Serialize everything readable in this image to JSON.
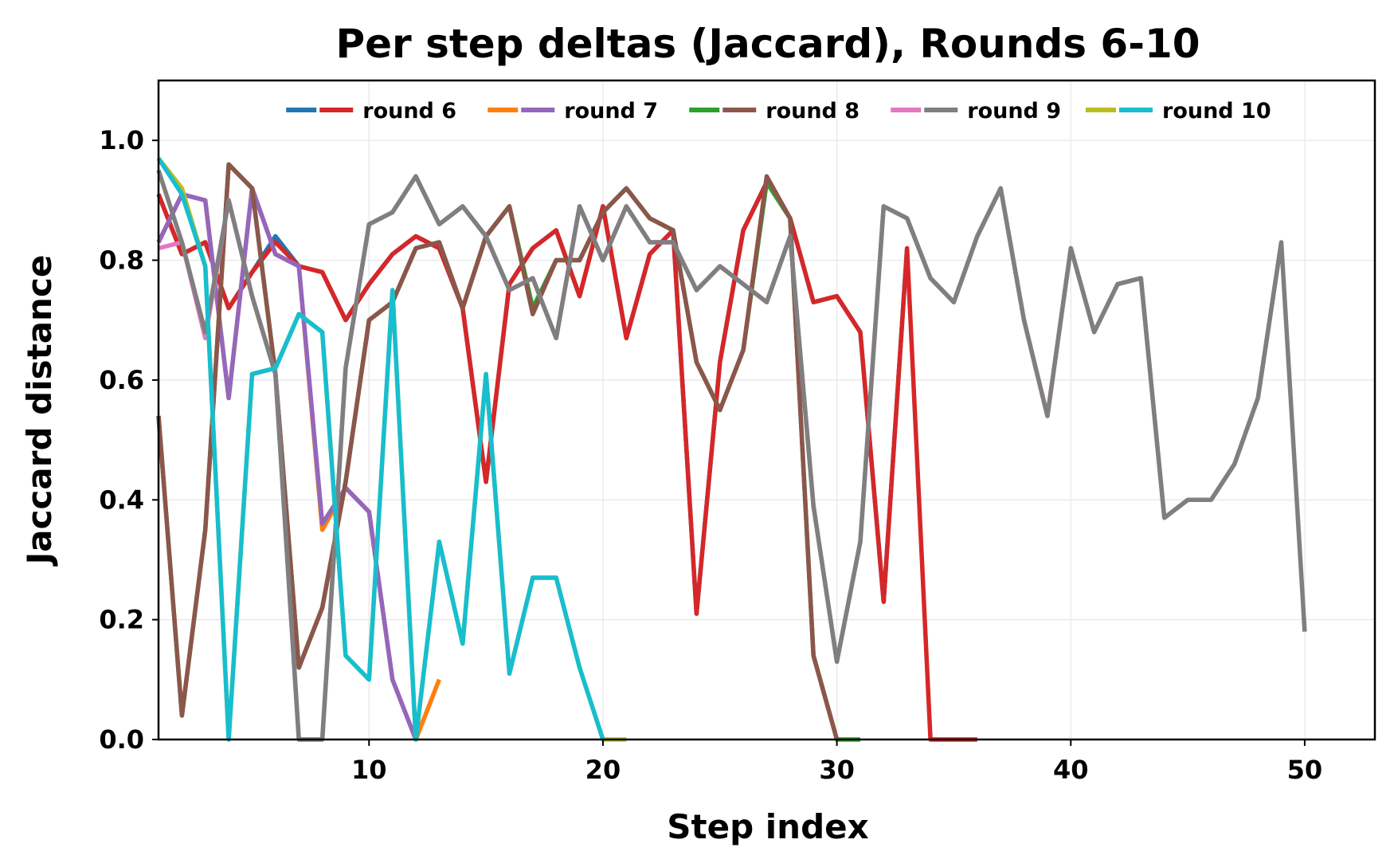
{
  "chart_data": {
    "type": "line",
    "title": "Per step deltas (Jaccard), Rounds 6-10",
    "xlabel": "Step index",
    "ylabel": "Jaccard distance",
    "xlim": [
      1,
      53
    ],
    "ylim": [
      0,
      1.1
    ],
    "xticks": [
      10,
      20,
      30,
      40,
      50
    ],
    "yticks": [
      0.0,
      0.2,
      0.4,
      0.6,
      0.8,
      1.0
    ],
    "ytick_labels": [
      "0.0",
      "0.2",
      "0.4",
      "0.6",
      "0.8",
      "1.0"
    ],
    "grid": true,
    "legend_position": "top-center",
    "legend": [
      {
        "label": "round 6",
        "colors": [
          "#1f77b4",
          "#d62728"
        ]
      },
      {
        "label": "round 7",
        "colors": [
          "#ff7f0e",
          "#9467bd"
        ]
      },
      {
        "label": "round 8",
        "colors": [
          "#2ca02c",
          "#8c564b"
        ]
      },
      {
        "label": "round 9",
        "colors": [
          "#e377c2",
          "#7f7f7f"
        ]
      },
      {
        "label": "round 10",
        "colors": [
          "#bcbd22",
          "#17becf"
        ]
      }
    ],
    "series": [
      {
        "name": "round 6",
        "color": "#1f77b4",
        "x": [
          1,
          2,
          3,
          4,
          5,
          6,
          7,
          8,
          9,
          10,
          11,
          12,
          13,
          14,
          15,
          16,
          17,
          18,
          19,
          20,
          21,
          22,
          23,
          24,
          25,
          26,
          27,
          28,
          29,
          30,
          31,
          32,
          33
        ],
        "y": [
          0.91,
          0.81,
          0.83,
          0.72,
          0.78,
          0.84,
          0.79,
          0.78,
          0.7,
          0.76,
          0.81,
          0.84,
          0.82,
          0.72,
          0.43,
          0.76,
          0.82,
          0.85,
          0.74,
          0.89,
          0.67,
          0.81,
          0.85,
          0.21,
          0.63,
          0.85,
          0.93,
          0.87,
          0.73,
          0.74,
          0.68,
          0.23,
          0.82
        ]
      },
      {
        "name": "round 6",
        "color": "#d62728",
        "x": [
          1,
          2,
          3,
          4,
          5,
          6,
          7,
          8,
          9,
          10,
          11,
          12,
          13,
          14,
          15,
          16,
          17,
          18,
          19,
          20,
          21,
          22,
          23,
          24,
          25,
          26,
          27,
          28,
          29,
          30,
          31,
          32,
          33,
          34,
          35,
          36
        ],
        "y": [
          0.91,
          0.81,
          0.83,
          0.72,
          0.78,
          0.83,
          0.79,
          0.78,
          0.7,
          0.76,
          0.81,
          0.84,
          0.82,
          0.72,
          0.43,
          0.76,
          0.82,
          0.85,
          0.74,
          0.89,
          0.67,
          0.81,
          0.85,
          0.21,
          0.63,
          0.85,
          0.93,
          0.87,
          0.73,
          0.74,
          0.68,
          0.23,
          0.82,
          0.0,
          0.0,
          0.0
        ]
      },
      {
        "name": "round 7",
        "color": "#ff7f0e",
        "x": [
          1,
          2,
          3,
          4,
          5,
          6,
          7,
          8,
          9,
          10,
          11,
          12,
          13
        ],
        "y": [
          0.83,
          0.91,
          0.9,
          0.57,
          0.92,
          0.81,
          0.79,
          0.35,
          0.42,
          0.38,
          0.1,
          0.0,
          0.1
        ]
      },
      {
        "name": "round 7",
        "color": "#9467bd",
        "x": [
          1,
          2,
          3,
          4,
          5,
          6,
          7,
          8,
          9,
          10,
          11,
          12
        ],
        "y": [
          0.83,
          0.91,
          0.9,
          0.57,
          0.92,
          0.81,
          0.79,
          0.36,
          0.42,
          0.38,
          0.1,
          0.0
        ]
      },
      {
        "name": "round 8",
        "color": "#2ca02c",
        "x": [
          1,
          2,
          3,
          4,
          5,
          6,
          7,
          8,
          9,
          10,
          11,
          12,
          13,
          14,
          15,
          16,
          17,
          18,
          19,
          20,
          21,
          22,
          23,
          24,
          25,
          26,
          27,
          28,
          29,
          30,
          31
        ],
        "y": [
          0.54,
          0.04,
          0.35,
          0.96,
          0.92,
          0.61,
          0.12,
          0.22,
          0.43,
          0.7,
          0.73,
          0.82,
          0.83,
          0.72,
          0.84,
          0.89,
          0.72,
          0.8,
          0.8,
          0.88,
          0.92,
          0.87,
          0.85,
          0.63,
          0.55,
          0.65,
          0.93,
          0.87,
          0.14,
          0.0,
          0.0
        ]
      },
      {
        "name": "round 8",
        "color": "#8c564b",
        "x": [
          1,
          2,
          3,
          4,
          5,
          6,
          7,
          8,
          9,
          10,
          11,
          12,
          13,
          14,
          15,
          16,
          17,
          18,
          19,
          20,
          21,
          22,
          23,
          24,
          25,
          26,
          27,
          28,
          29,
          30
        ],
        "y": [
          0.54,
          0.04,
          0.35,
          0.96,
          0.92,
          0.61,
          0.12,
          0.22,
          0.43,
          0.7,
          0.73,
          0.82,
          0.83,
          0.72,
          0.84,
          0.89,
          0.71,
          0.8,
          0.8,
          0.88,
          0.92,
          0.87,
          0.85,
          0.63,
          0.55,
          0.65,
          0.94,
          0.87,
          0.14,
          0.0
        ]
      },
      {
        "name": "round 9",
        "color": "#e377c2",
        "x": [
          1,
          2,
          3,
          4,
          5,
          6,
          7,
          8,
          9,
          10,
          11,
          12,
          13,
          14,
          15,
          16,
          17,
          18,
          19,
          20,
          21,
          22,
          23,
          24,
          25,
          26,
          27,
          28,
          29,
          30,
          31,
          32,
          33,
          34,
          35,
          36,
          37,
          38,
          39,
          40,
          41,
          42,
          43,
          44,
          45,
          46,
          47,
          48,
          49
        ],
        "y": [
          0.82,
          0.83,
          0.67,
          0.9,
          0.74,
          0.61,
          0.0,
          0.0,
          0.62,
          0.86,
          0.88,
          0.94,
          0.86,
          0.89,
          0.84,
          0.75,
          0.77,
          0.67,
          0.89,
          0.8,
          0.89,
          0.83,
          0.83,
          0.75,
          0.79,
          0.76,
          0.73,
          0.84,
          0.39,
          0.13,
          0.33,
          0.89,
          0.87,
          0.77,
          0.73,
          0.84,
          0.92,
          0.7,
          0.54,
          0.82,
          0.68,
          0.76,
          0.77,
          0.37,
          0.4,
          0.4,
          0.46,
          0.57,
          0.83
        ]
      },
      {
        "name": "round 9",
        "color": "#7f7f7f",
        "x": [
          1,
          2,
          3,
          4,
          5,
          6,
          7,
          8,
          9,
          10,
          11,
          12,
          13,
          14,
          15,
          16,
          17,
          18,
          19,
          20,
          21,
          22,
          23,
          24,
          25,
          26,
          27,
          28,
          29,
          30,
          31,
          32,
          33,
          34,
          35,
          36,
          37,
          38,
          39,
          40,
          41,
          42,
          43,
          44,
          45,
          46,
          47,
          48,
          49,
          50
        ],
        "y": [
          0.95,
          0.83,
          0.68,
          0.9,
          0.74,
          0.61,
          0.0,
          0.0,
          0.62,
          0.86,
          0.88,
          0.94,
          0.86,
          0.89,
          0.84,
          0.75,
          0.77,
          0.67,
          0.89,
          0.8,
          0.89,
          0.83,
          0.83,
          0.75,
          0.79,
          0.76,
          0.73,
          0.84,
          0.39,
          0.13,
          0.33,
          0.89,
          0.87,
          0.77,
          0.73,
          0.84,
          0.92,
          0.7,
          0.54,
          0.82,
          0.68,
          0.76,
          0.77,
          0.37,
          0.4,
          0.4,
          0.46,
          0.57,
          0.83,
          0.18
        ]
      },
      {
        "name": "round 10",
        "color": "#bcbd22",
        "x": [
          1,
          2,
          3,
          4,
          5,
          6,
          7,
          8,
          9,
          10,
          11,
          12,
          13,
          14,
          15,
          16,
          17,
          18,
          19,
          20,
          21
        ],
        "y": [
          0.97,
          0.92,
          0.79,
          0.0,
          0.61,
          0.62,
          0.71,
          0.68,
          0.14,
          0.1,
          0.75,
          0.0,
          0.33,
          0.16,
          0.61,
          0.11,
          0.27,
          0.27,
          0.12,
          0.0,
          0.0
        ]
      },
      {
        "name": "round 10",
        "color": "#17becf",
        "x": [
          1,
          2,
          3,
          4,
          5,
          6,
          7,
          8,
          9,
          10,
          11,
          12,
          13,
          14,
          15,
          16,
          17,
          18,
          19,
          20
        ],
        "y": [
          0.97,
          0.91,
          0.79,
          0.0,
          0.61,
          0.62,
          0.71,
          0.68,
          0.14,
          0.1,
          0.75,
          0.0,
          0.33,
          0.16,
          0.61,
          0.11,
          0.27,
          0.27,
          0.12,
          0.0
        ]
      }
    ]
  }
}
